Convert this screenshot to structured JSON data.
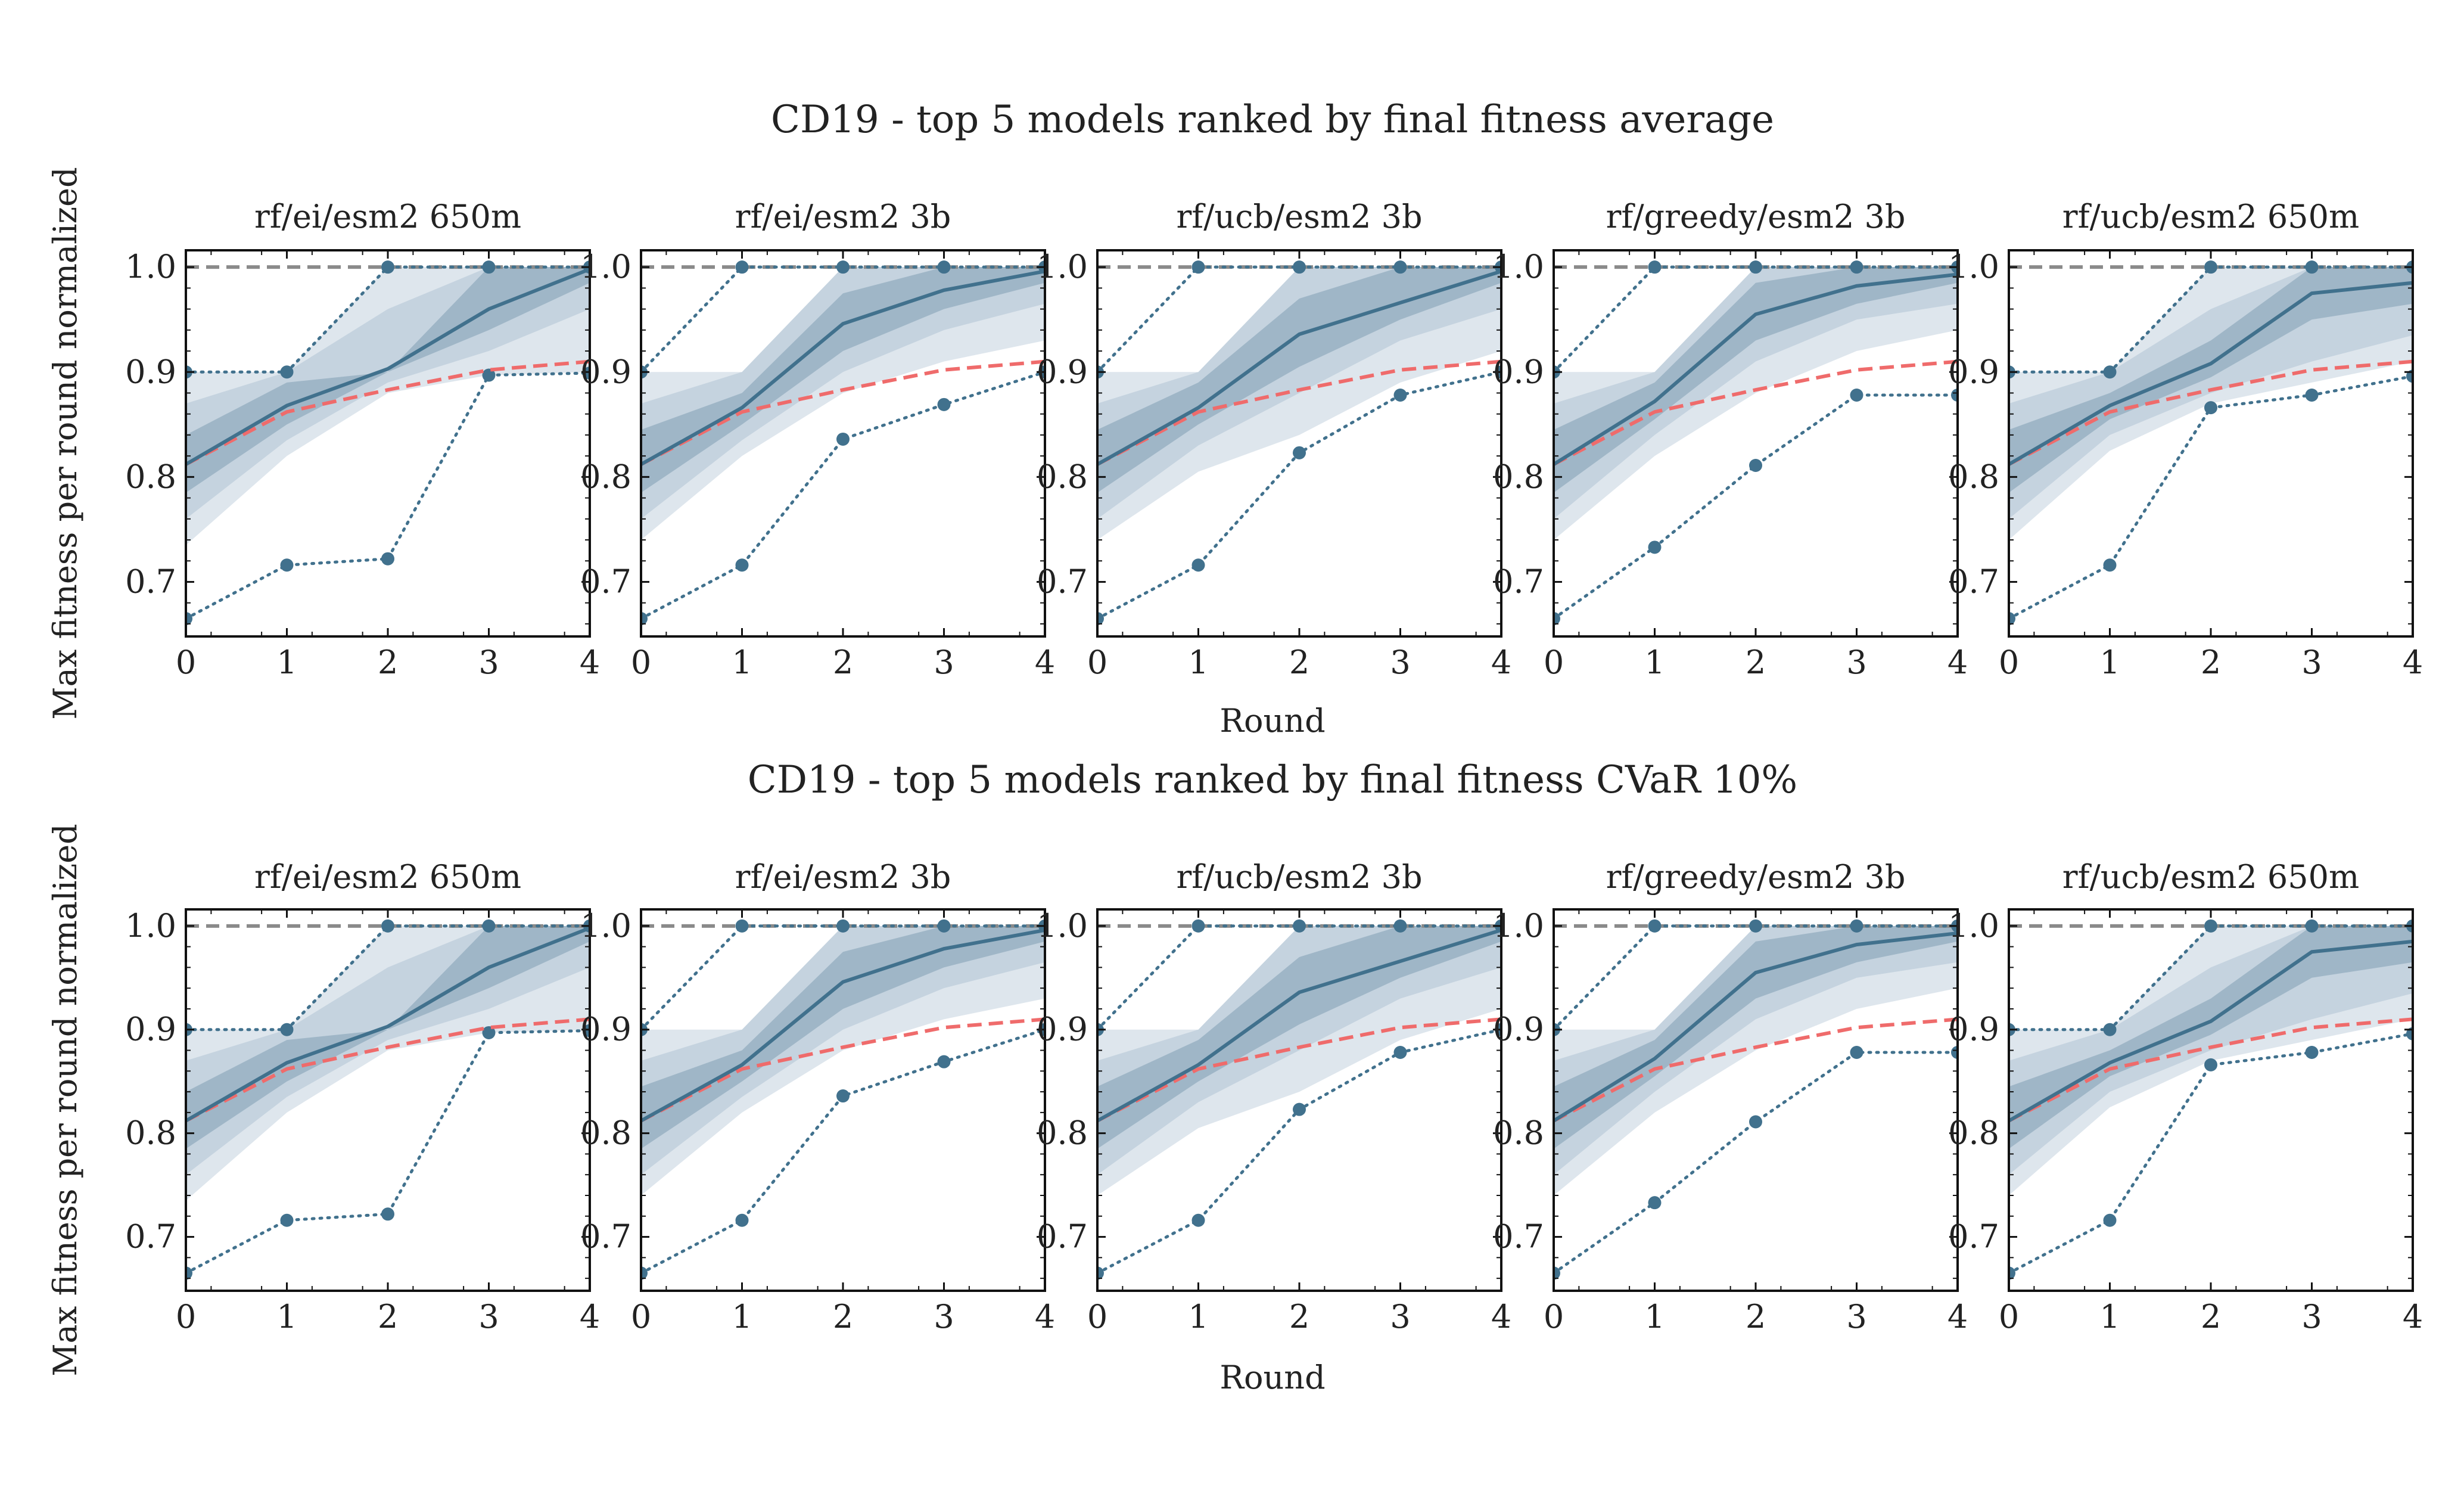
{
  "colors": {
    "series": "#41718d",
    "band_light": "#d8e2ea",
    "band_mid": "#b4c7d5",
    "band_dark": "#7f9fb3",
    "reference": "#ef6b6b",
    "max_line": "#8a8a8a",
    "axis": "#111111"
  },
  "chart_data": [
    {
      "type": "line",
      "title": "CD19 - top 5 models ranked by final fitness average",
      "xlabel": "Round",
      "ylabel": "Max fitness per round normalized",
      "x": [
        0,
        1,
        2,
        3,
        4
      ],
      "xticks": [
        0,
        1,
        2,
        3,
        4
      ],
      "yticks": [
        0.7,
        0.8,
        0.9,
        1.0
      ],
      "ytick_labels": [
        "0.7",
        "0.8",
        "0.9",
        "1.0"
      ],
      "xlim": [
        0,
        4
      ],
      "ylim": [
        0.648,
        1.016
      ],
      "grid": false,
      "panels": [
        {
          "title": "rf/ei/esm2 650m",
          "mean": [
            0.812,
            0.868,
            0.903,
            0.96,
            0.998
          ],
          "reference": [
            0.812,
            0.862,
            0.883,
            0.902,
            0.91
          ],
          "max_line": [
            1.0,
            1.0,
            1.0,
            1.0,
            1.0
          ],
          "best_run": [
            0.9,
            0.9,
            1.0,
            1.0,
            1.0
          ],
          "worst_run": [
            0.665,
            0.716,
            0.722,
            0.897,
            0.899
          ],
          "band_light": {
            "lower": [
              0.735,
              0.82,
              0.88,
              0.897,
              0.9
            ],
            "upper": [
              0.9,
              0.9,
              1.0,
              1.0,
              1.0
            ]
          },
          "band_mid": {
            "lower": [
              0.76,
              0.835,
              0.89,
              0.92,
              0.96
            ],
            "upper": [
              0.87,
              0.9,
              0.96,
              1.0,
              1.0
            ]
          },
          "band_dark": {
            "lower": [
              0.785,
              0.85,
              0.9,
              0.94,
              0.985
            ],
            "upper": [
              0.84,
              0.89,
              0.9,
              1.0,
              1.0
            ]
          }
        },
        {
          "title": "rf/ei/esm2 3b",
          "mean": [
            0.812,
            0.866,
            0.946,
            0.978,
            0.996
          ],
          "reference": [
            0.812,
            0.862,
            0.883,
            0.902,
            0.91
          ],
          "max_line": [
            1.0,
            1.0,
            1.0,
            1.0,
            1.0
          ],
          "best_run": [
            0.9,
            1.0,
            1.0,
            1.0,
            1.0
          ],
          "worst_run": [
            0.665,
            0.716,
            0.836,
            0.869,
            0.9
          ],
          "band_light": {
            "lower": [
              0.74,
              0.82,
              0.88,
              0.91,
              0.93
            ],
            "upper": [
              0.9,
              0.9,
              1.0,
              1.0,
              1.0
            ]
          },
          "band_mid": {
            "lower": [
              0.76,
              0.835,
              0.9,
              0.94,
              0.965
            ],
            "upper": [
              0.87,
              0.9,
              1.0,
              1.0,
              1.0
            ]
          },
          "band_dark": {
            "lower": [
              0.785,
              0.85,
              0.92,
              0.96,
              0.985
            ],
            "upper": [
              0.845,
              0.88,
              0.975,
              1.0,
              1.0
            ]
          }
        },
        {
          "title": "rf/ucb/esm2 3b",
          "mean": [
            0.812,
            0.866,
            0.936,
            0.966,
            0.996
          ],
          "reference": [
            0.812,
            0.862,
            0.883,
            0.902,
            0.91
          ],
          "max_line": [
            1.0,
            1.0,
            1.0,
            1.0,
            1.0
          ],
          "best_run": [
            0.9,
            1.0,
            1.0,
            1.0,
            1.0
          ],
          "worst_run": [
            0.665,
            0.716,
            0.823,
            0.878,
            0.9
          ],
          "band_light": {
            "lower": [
              0.74,
              0.805,
              0.84,
              0.89,
              0.92
            ],
            "upper": [
              0.9,
              0.9,
              1.0,
              1.0,
              1.0
            ]
          },
          "band_mid": {
            "lower": [
              0.76,
              0.83,
              0.88,
              0.93,
              0.96
            ],
            "upper": [
              0.87,
              0.9,
              1.0,
              1.0,
              1.0
            ]
          },
          "band_dark": {
            "lower": [
              0.785,
              0.85,
              0.905,
              0.95,
              0.985
            ],
            "upper": [
              0.845,
              0.89,
              0.97,
              1.0,
              1.0
            ]
          }
        },
        {
          "title": "rf/greedy/esm2 3b",
          "mean": [
            0.812,
            0.872,
            0.955,
            0.982,
            0.993
          ],
          "reference": [
            0.812,
            0.862,
            0.883,
            0.902,
            0.91
          ],
          "max_line": [
            1.0,
            1.0,
            1.0,
            1.0,
            1.0
          ],
          "best_run": [
            0.9,
            1.0,
            1.0,
            1.0,
            1.0
          ],
          "worst_run": [
            0.665,
            0.733,
            0.811,
            0.878,
            0.878
          ],
          "band_light": {
            "lower": [
              0.74,
              0.82,
              0.88,
              0.92,
              0.94
            ],
            "upper": [
              0.9,
              0.9,
              1.0,
              1.0,
              1.0
            ]
          },
          "band_mid": {
            "lower": [
              0.76,
              0.84,
              0.91,
              0.95,
              0.965
            ],
            "upper": [
              0.87,
              0.9,
              1.0,
              1.0,
              1.0
            ]
          },
          "band_dark": {
            "lower": [
              0.785,
              0.855,
              0.93,
              0.965,
              0.985
            ],
            "upper": [
              0.845,
              0.89,
              0.985,
              1.0,
              1.0
            ]
          }
        },
        {
          "title": "rf/ucb/esm2 650m",
          "mean": [
            0.812,
            0.868,
            0.908,
            0.975,
            0.985
          ],
          "reference": [
            0.812,
            0.862,
            0.883,
            0.902,
            0.91
          ],
          "max_line": [
            1.0,
            1.0,
            1.0,
            1.0,
            1.0
          ],
          "best_run": [
            0.9,
            0.9,
            1.0,
            1.0,
            1.0
          ],
          "worst_run": [
            0.665,
            0.716,
            0.866,
            0.878,
            0.896
          ],
          "band_light": {
            "lower": [
              0.74,
              0.825,
              0.87,
              0.89,
              0.91
            ],
            "upper": [
              0.9,
              0.9,
              1.0,
              1.0,
              1.0
            ]
          },
          "band_mid": {
            "lower": [
              0.76,
              0.84,
              0.88,
              0.91,
              0.935
            ],
            "upper": [
              0.87,
              0.9,
              0.96,
              1.0,
              1.0
            ]
          },
          "band_dark": {
            "lower": [
              0.785,
              0.855,
              0.895,
              0.95,
              0.965
            ],
            "upper": [
              0.845,
              0.88,
              0.93,
              1.0,
              1.0
            ]
          }
        }
      ]
    },
    {
      "type": "line",
      "title": "CD19 - top 5 models ranked by final fitness CVaR 10%",
      "xlabel": "Round",
      "ylabel": "Max fitness per round normalized",
      "x": [
        0,
        1,
        2,
        3,
        4
      ],
      "xticks": [
        0,
        1,
        2,
        3,
        4
      ],
      "yticks": [
        0.7,
        0.8,
        0.9,
        1.0
      ],
      "ytick_labels": [
        "0.7",
        "0.8",
        "0.9",
        "1.0"
      ],
      "xlim": [
        0,
        4
      ],
      "ylim": [
        0.648,
        1.016
      ],
      "grid": false,
      "panels": [
        {
          "title": "rf/ei/esm2 650m",
          "mean": [
            0.812,
            0.868,
            0.903,
            0.96,
            0.998
          ],
          "reference": [
            0.812,
            0.862,
            0.883,
            0.902,
            0.91
          ],
          "max_line": [
            1.0,
            1.0,
            1.0,
            1.0,
            1.0
          ],
          "best_run": [
            0.9,
            0.9,
            1.0,
            1.0,
            1.0
          ],
          "worst_run": [
            0.665,
            0.716,
            0.722,
            0.897,
            0.899
          ],
          "band_light": {
            "lower": [
              0.735,
              0.82,
              0.88,
              0.897,
              0.9
            ],
            "upper": [
              0.9,
              0.9,
              1.0,
              1.0,
              1.0
            ]
          },
          "band_mid": {
            "lower": [
              0.76,
              0.835,
              0.89,
              0.92,
              0.96
            ],
            "upper": [
              0.87,
              0.9,
              0.96,
              1.0,
              1.0
            ]
          },
          "band_dark": {
            "lower": [
              0.785,
              0.85,
              0.9,
              0.94,
              0.985
            ],
            "upper": [
              0.84,
              0.89,
              0.9,
              1.0,
              1.0
            ]
          }
        },
        {
          "title": "rf/ei/esm2 3b",
          "mean": [
            0.812,
            0.866,
            0.946,
            0.978,
            0.996
          ],
          "reference": [
            0.812,
            0.862,
            0.883,
            0.902,
            0.91
          ],
          "max_line": [
            1.0,
            1.0,
            1.0,
            1.0,
            1.0
          ],
          "best_run": [
            0.9,
            1.0,
            1.0,
            1.0,
            1.0
          ],
          "worst_run": [
            0.665,
            0.716,
            0.836,
            0.869,
            0.9
          ],
          "band_light": {
            "lower": [
              0.74,
              0.82,
              0.88,
              0.91,
              0.93
            ],
            "upper": [
              0.9,
              0.9,
              1.0,
              1.0,
              1.0
            ]
          },
          "band_mid": {
            "lower": [
              0.76,
              0.835,
              0.9,
              0.94,
              0.965
            ],
            "upper": [
              0.87,
              0.9,
              1.0,
              1.0,
              1.0
            ]
          },
          "band_dark": {
            "lower": [
              0.785,
              0.85,
              0.92,
              0.96,
              0.985
            ],
            "upper": [
              0.845,
              0.88,
              0.975,
              1.0,
              1.0
            ]
          }
        },
        {
          "title": "rf/ucb/esm2 3b",
          "mean": [
            0.812,
            0.866,
            0.936,
            0.966,
            0.996
          ],
          "reference": [
            0.812,
            0.862,
            0.883,
            0.902,
            0.91
          ],
          "max_line": [
            1.0,
            1.0,
            1.0,
            1.0,
            1.0
          ],
          "best_run": [
            0.9,
            1.0,
            1.0,
            1.0,
            1.0
          ],
          "worst_run": [
            0.665,
            0.716,
            0.823,
            0.878,
            0.9
          ],
          "band_light": {
            "lower": [
              0.74,
              0.805,
              0.84,
              0.89,
              0.92
            ],
            "upper": [
              0.9,
              0.9,
              1.0,
              1.0,
              1.0
            ]
          },
          "band_mid": {
            "lower": [
              0.76,
              0.83,
              0.88,
              0.93,
              0.96
            ],
            "upper": [
              0.87,
              0.9,
              1.0,
              1.0,
              1.0
            ]
          },
          "band_dark": {
            "lower": [
              0.785,
              0.85,
              0.905,
              0.95,
              0.985
            ],
            "upper": [
              0.845,
              0.89,
              0.97,
              1.0,
              1.0
            ]
          }
        },
        {
          "title": "rf/greedy/esm2 3b",
          "mean": [
            0.812,
            0.872,
            0.955,
            0.982,
            0.993
          ],
          "reference": [
            0.812,
            0.862,
            0.883,
            0.902,
            0.91
          ],
          "max_line": [
            1.0,
            1.0,
            1.0,
            1.0,
            1.0
          ],
          "best_run": [
            0.9,
            1.0,
            1.0,
            1.0,
            1.0
          ],
          "worst_run": [
            0.665,
            0.733,
            0.811,
            0.878,
            0.878
          ],
          "band_light": {
            "lower": [
              0.74,
              0.82,
              0.88,
              0.92,
              0.94
            ],
            "upper": [
              0.9,
              0.9,
              1.0,
              1.0,
              1.0
            ]
          },
          "band_mid": {
            "lower": [
              0.76,
              0.84,
              0.91,
              0.95,
              0.965
            ],
            "upper": [
              0.87,
              0.9,
              1.0,
              1.0,
              1.0
            ]
          },
          "band_dark": {
            "lower": [
              0.785,
              0.855,
              0.93,
              0.965,
              0.985
            ],
            "upper": [
              0.845,
              0.89,
              0.985,
              1.0,
              1.0
            ]
          }
        },
        {
          "title": "rf/ucb/esm2 650m",
          "mean": [
            0.812,
            0.868,
            0.908,
            0.975,
            0.985
          ],
          "reference": [
            0.812,
            0.862,
            0.883,
            0.902,
            0.91
          ],
          "max_line": [
            1.0,
            1.0,
            1.0,
            1.0,
            1.0
          ],
          "best_run": [
            0.9,
            0.9,
            1.0,
            1.0,
            1.0
          ],
          "worst_run": [
            0.665,
            0.716,
            0.866,
            0.878,
            0.896
          ],
          "band_light": {
            "lower": [
              0.74,
              0.825,
              0.87,
              0.89,
              0.91
            ],
            "upper": [
              0.9,
              0.9,
              1.0,
              1.0,
              1.0
            ]
          },
          "band_mid": {
            "lower": [
              0.76,
              0.84,
              0.88,
              0.91,
              0.935
            ],
            "upper": [
              0.87,
              0.9,
              0.96,
              1.0,
              1.0
            ]
          },
          "band_dark": {
            "lower": [
              0.785,
              0.855,
              0.895,
              0.95,
              0.965
            ],
            "upper": [
              0.845,
              0.88,
              0.93,
              1.0,
              1.0
            ]
          }
        }
      ]
    }
  ]
}
